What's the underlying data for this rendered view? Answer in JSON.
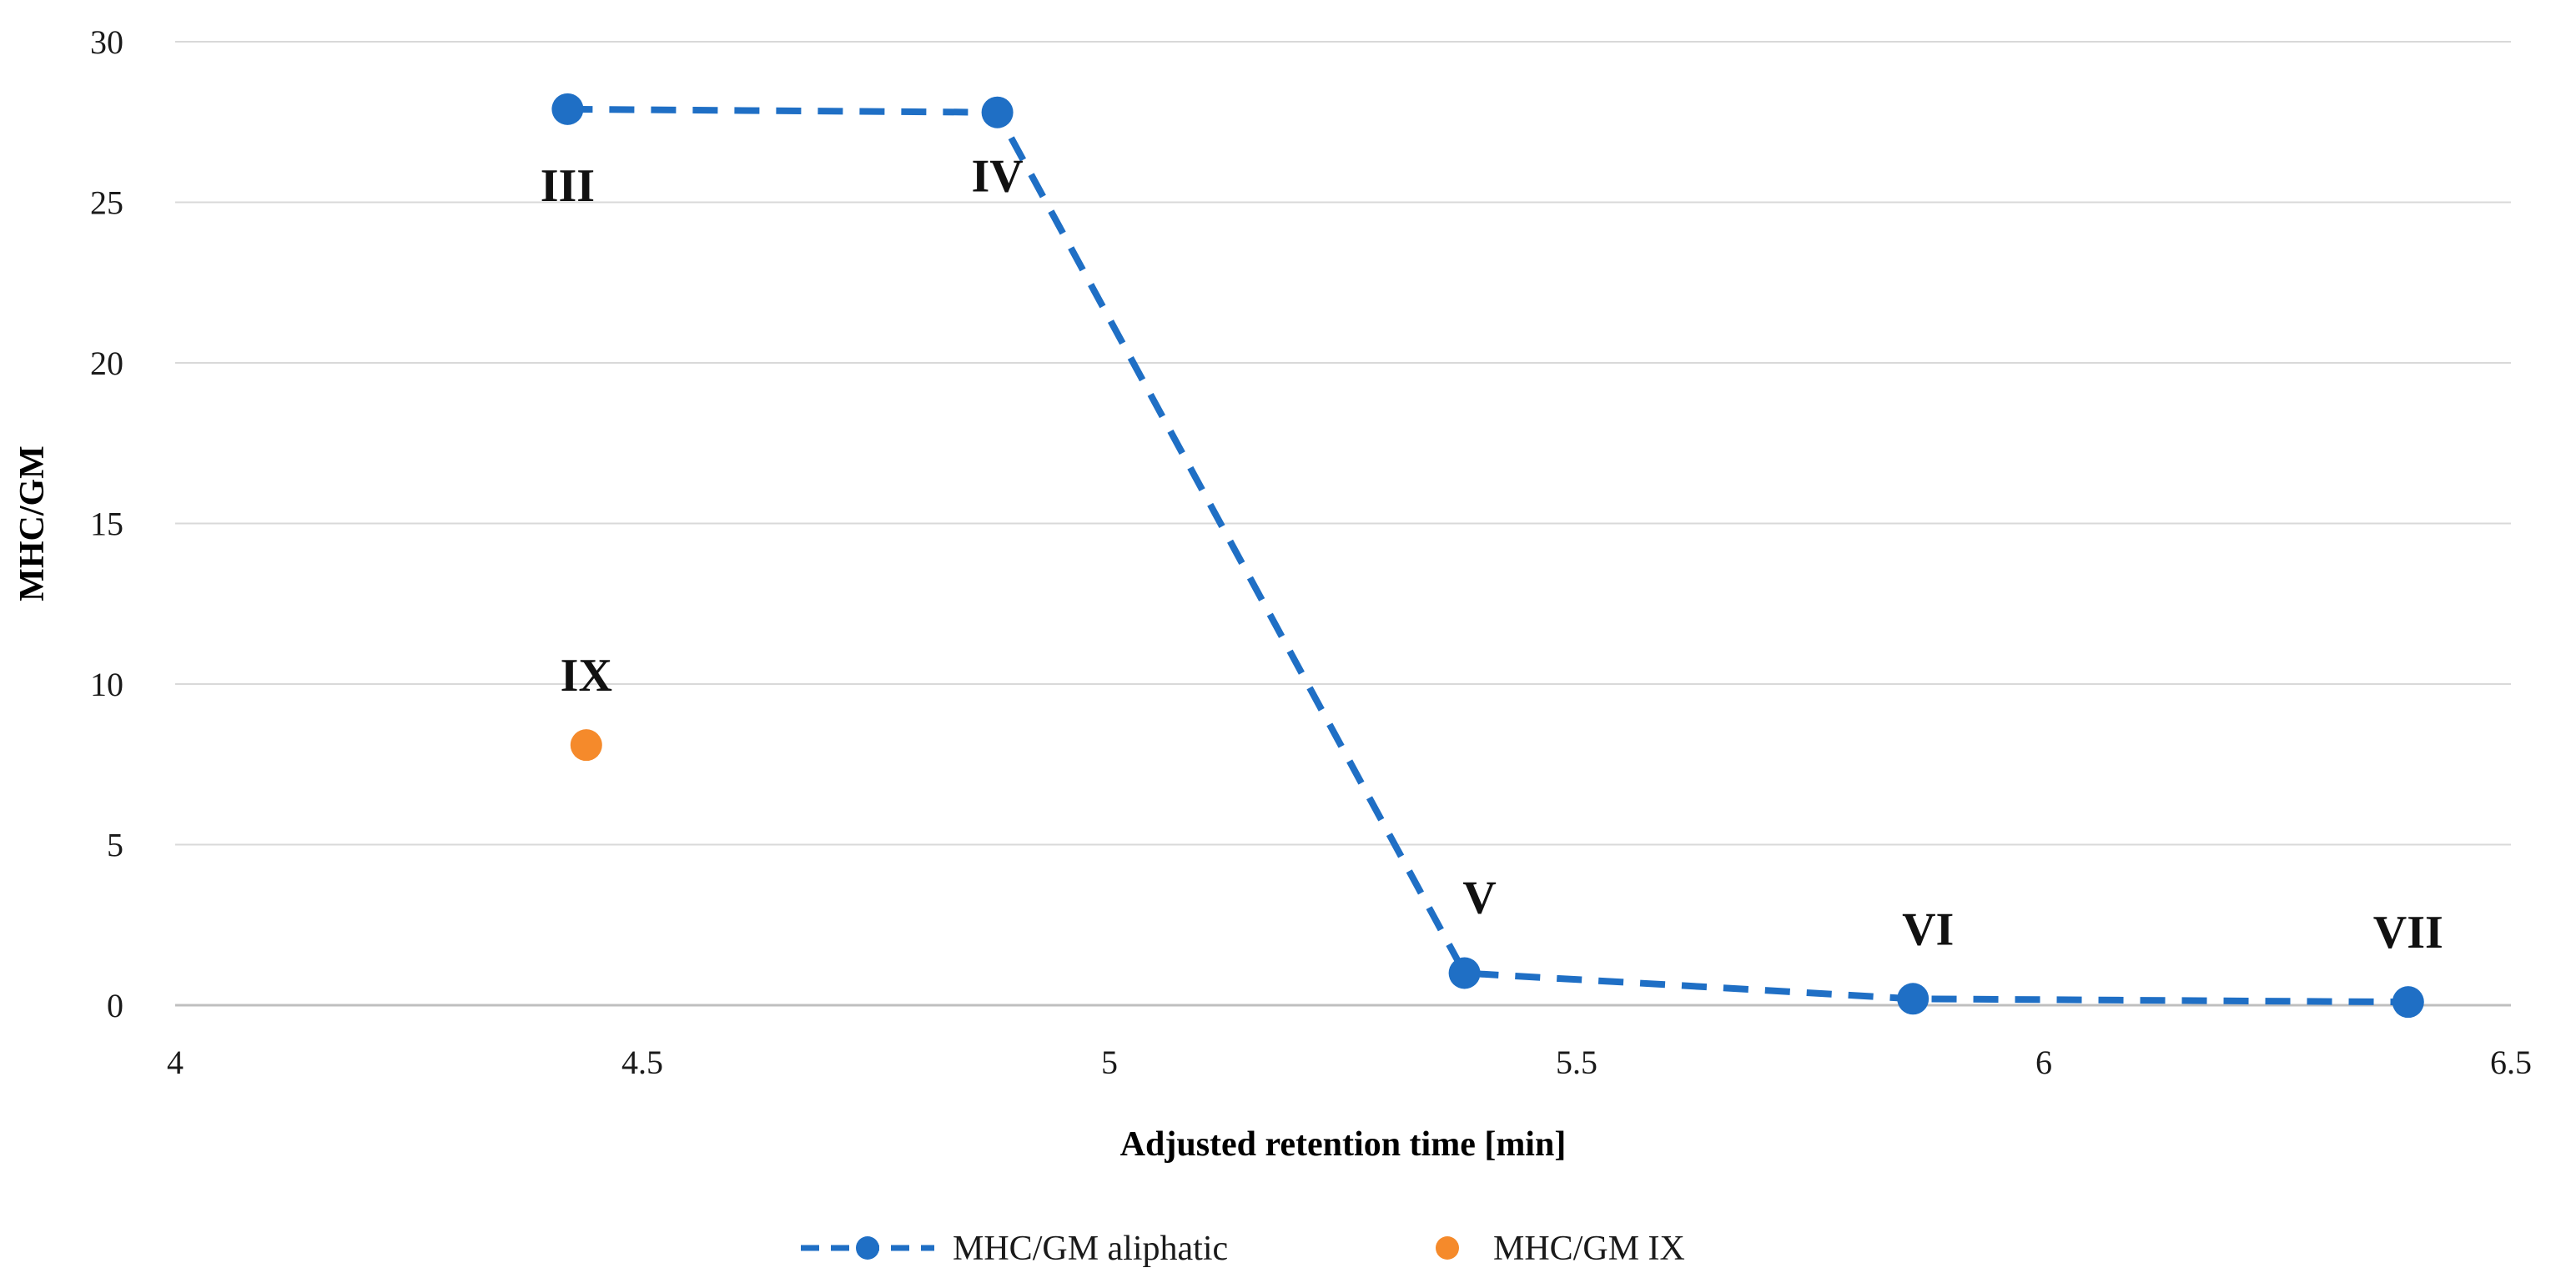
{
  "chart_data": {
    "type": "scatter",
    "title": "",
    "xlabel": "Adjusted retention time [min]",
    "ylabel": "MHC/GM",
    "xlim": [
      4,
      6.5
    ],
    "ylim": [
      0,
      30
    ],
    "x_ticks": [
      4,
      4.5,
      5,
      5.5,
      6,
      6.5
    ],
    "x_tick_labels": [
      "4",
      "4.5",
      "5",
      "5.5",
      "6",
      "6.5"
    ],
    "y_ticks": [
      0,
      5,
      10,
      15,
      20,
      25,
      30
    ],
    "y_tick_labels": [
      "0",
      "5",
      "10",
      "15",
      "20",
      "25",
      "30"
    ],
    "grid": "horizontal",
    "legend_position": "bottom",
    "series": [
      {
        "name": "MHC/GM aliphatic",
        "style": "dashed-line-with-markers",
        "color": "#1f6fc5",
        "points": [
          {
            "x": 4.42,
            "y": 27.9,
            "label": "III"
          },
          {
            "x": 4.88,
            "y": 27.8,
            "label": "IV"
          },
          {
            "x": 5.38,
            "y": 1.0,
            "label": "V"
          },
          {
            "x": 5.86,
            "y": 0.2,
            "label": "VI"
          },
          {
            "x": 6.39,
            "y": 0.1,
            "label": "VII"
          }
        ]
      },
      {
        "name": "MHC/GM IX",
        "style": "markers",
        "color": "#f58a2b",
        "points": [
          {
            "x": 4.44,
            "y": 8.1,
            "label": "IX"
          }
        ]
      }
    ]
  }
}
